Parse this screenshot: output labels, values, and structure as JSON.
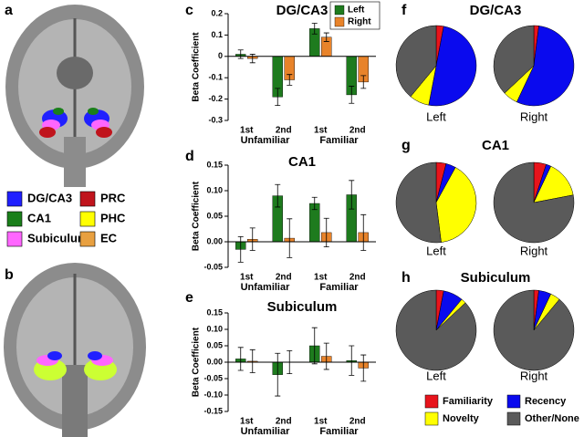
{
  "images": [
    {
      "panel": "a"
    },
    {
      "panel": "b"
    }
  ],
  "roi_legend": [
    {
      "label": "DG/CA3",
      "color": "#2020ff"
    },
    {
      "label": "CA1",
      "color": "#1a7f1a"
    },
    {
      "label": "Subiculum",
      "color": "#ff66ff"
    },
    {
      "label": "PRC",
      "color": "#c0141c"
    },
    {
      "label": "PHC",
      "color": "#ffff00"
    },
    {
      "label": "EC",
      "color": "#e8a040"
    }
  ],
  "chart_data": [
    {
      "type": "bar",
      "panel": "c",
      "title": "DG/CA3",
      "y_label": "Beta Coefficient",
      "categories": [
        "1st",
        "2nd",
        "1st",
        "2nd"
      ],
      "groups": [
        "Unfamiliar",
        "Familiar"
      ],
      "series": [
        {
          "name": "Left",
          "color": "#1e7b1e",
          "values": [
            0.01,
            -0.19,
            0.13,
            -0.18
          ],
          "errors": [
            0.02,
            0.04,
            0.025,
            0.04
          ]
        },
        {
          "name": "Right",
          "color": "#e8832a",
          "values": [
            -0.01,
            -0.11,
            0.09,
            -0.12
          ],
          "errors": [
            0.02,
            0.025,
            0.02,
            0.03
          ]
        }
      ],
      "ylim": [
        -0.3,
        0.2
      ],
      "yticks": [
        -0.3,
        -0.2,
        -0.1,
        0,
        0.1,
        0.2
      ],
      "legend": "top-right"
    },
    {
      "type": "bar",
      "panel": "d",
      "title": "CA1",
      "y_label": "Beta Coefficient",
      "categories": [
        "1st",
        "2nd",
        "1st",
        "2nd"
      ],
      "groups": [
        "Unfamiliar",
        "Familiar"
      ],
      "series": [
        {
          "color": "#1e7b1e",
          "values": [
            -0.015,
            0.09,
            0.075,
            0.092
          ],
          "errors": [
            0.025,
            0.022,
            0.012,
            0.028
          ]
        },
        {
          "color": "#e8832a",
          "values": [
            0.005,
            0.007,
            0.018,
            0.018
          ],
          "errors": [
            0.022,
            0.038,
            0.028,
            0.035
          ]
        }
      ],
      "ylim": [
        -0.05,
        0.15
      ],
      "yticks": [
        -0.05,
        {
          "value": 0,
          "label": "0.00"
        },
        0.05,
        {
          "value": 0.1,
          "label": "0.10"
        },
        0.15
      ]
    },
    {
      "type": "bar",
      "panel": "e",
      "title": "Subiculum",
      "y_label": "Beta Coefficient",
      "categories": [
        "1st",
        "2nd",
        "1st",
        "2nd"
      ],
      "groups": [
        "Unfamiliar",
        "Familiar"
      ],
      "series": [
        {
          "color": "#1e7b1e",
          "values": [
            0.01,
            -0.038,
            0.05,
            0.005
          ],
          "errors": [
            0.035,
            0.065,
            0.055,
            0.045
          ]
        },
        {
          "color": "#e8832a",
          "values": [
            0.003,
            0.0,
            0.018,
            -0.018
          ],
          "errors": [
            0.035,
            0.035,
            0.04,
            0.04
          ]
        }
      ],
      "ylim": [
        -0.15,
        0.15
      ],
      "yticks": [
        -0.15,
        {
          "value": -0.1,
          "label": "-0.10"
        },
        -0.05,
        {
          "value": 0,
          "label": "0.00"
        },
        0.05,
        {
          "value": 0.1,
          "label": "0.10"
        },
        0.15
      ]
    },
    {
      "type": "pie",
      "panel": "f",
      "title": "DG/CA3",
      "categories": [
        "Familiarity",
        "Recency",
        "Novelty",
        "Other/None"
      ],
      "colors": [
        "#e8141c",
        "#0a0aee",
        "#ffff00",
        "#5a5a5a"
      ],
      "legend": "bottom",
      "pies": [
        {
          "label": "Left",
          "values": [
            3,
            50,
            8,
            39
          ]
        },
        {
          "label": "Right",
          "values": [
            2,
            55,
            6,
            37
          ]
        }
      ]
    },
    {
      "type": "pie",
      "panel": "g",
      "title": "CA1",
      "colors": [
        "#e8141c",
        "#0a0aee",
        "#ffff00",
        "#5a5a5a"
      ],
      "pies": [
        {
          "label": "Left",
          "values": [
            4,
            4,
            40,
            52
          ]
        },
        {
          "label": "Right",
          "values": [
            5,
            2,
            15,
            78
          ]
        }
      ]
    },
    {
      "type": "pie",
      "panel": "h",
      "title": "Subiculum",
      "colors": [
        "#e8141c",
        "#0a0aee",
        "#ffff00",
        "#5a5a5a"
      ],
      "pies": [
        {
          "label": "Left",
          "values": [
            3,
            8,
            2,
            87
          ]
        },
        {
          "label": "Right",
          "values": [
            2,
            5,
            4,
            89
          ]
        }
      ]
    }
  ]
}
